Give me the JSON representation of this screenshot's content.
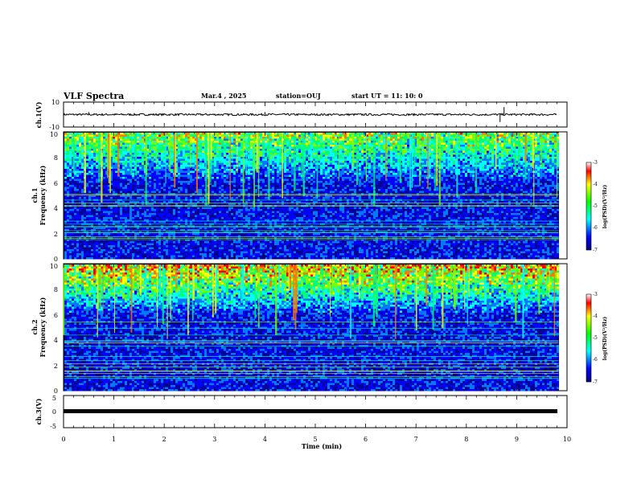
{
  "header": {
    "title": "VLF Spectra",
    "date": "Mar.4 , 2025",
    "station": "station=OUJ",
    "start": "start UT =  11: 10: 0"
  },
  "chart_data": [
    {
      "type": "line",
      "ylabel": "ch.1(V)",
      "ylim": [
        -10,
        10
      ],
      "y_ticks": [
        "10",
        "-10"
      ],
      "xlim": [
        0,
        10
      ],
      "baseline": 0,
      "spikes": [
        {
          "x": 0.5,
          "y": 2
        },
        {
          "x": 4.0,
          "y": 2
        },
        {
          "x": 8.75,
          "y": 6
        },
        {
          "x": 8.67,
          "y": -6
        }
      ]
    },
    {
      "type": "heatmap",
      "label": "ch.1",
      "ylabel": "Frequency (kHz)",
      "ylim": [
        0,
        10
      ],
      "y_ticks": [
        "0",
        "2",
        "4",
        "6",
        "8",
        "10"
      ],
      "xlim": [
        0,
        9.83
      ],
      "colorbar": {
        "label": "log(PSD)(V²/Hz)",
        "range": [
          -7,
          -3
        ],
        "ticks": [
          "-3",
          "-4",
          "-5",
          "-6",
          "-7"
        ]
      }
    },
    {
      "type": "heatmap",
      "label": "ch.2",
      "ylabel": "Frequency (kHz)",
      "ylim": [
        0,
        10
      ],
      "y_ticks": [
        "0",
        "2",
        "4",
        "6",
        "8",
        "10"
      ],
      "xlim": [
        0,
        9.83
      ],
      "colorbar": {
        "label": "log(PSD)(V²/Hz)",
        "range": [
          -7,
          -3
        ],
        "ticks": [
          "-3",
          "-4",
          "-5",
          "-6",
          "-7"
        ]
      }
    },
    {
      "type": "line",
      "ylabel": "ch.3(V)",
      "ylim": [
        -5,
        5
      ],
      "y_ticks": [
        "5",
        "0",
        "-5"
      ],
      "xlim": [
        0,
        10
      ],
      "baseline": 0
    }
  ],
  "x_axis": {
    "label": "Time (min)",
    "ticks": [
      "0",
      "1",
      "2",
      "3",
      "4",
      "5",
      "6",
      "7",
      "8",
      "9",
      "10"
    ],
    "range": [
      0,
      10
    ]
  }
}
